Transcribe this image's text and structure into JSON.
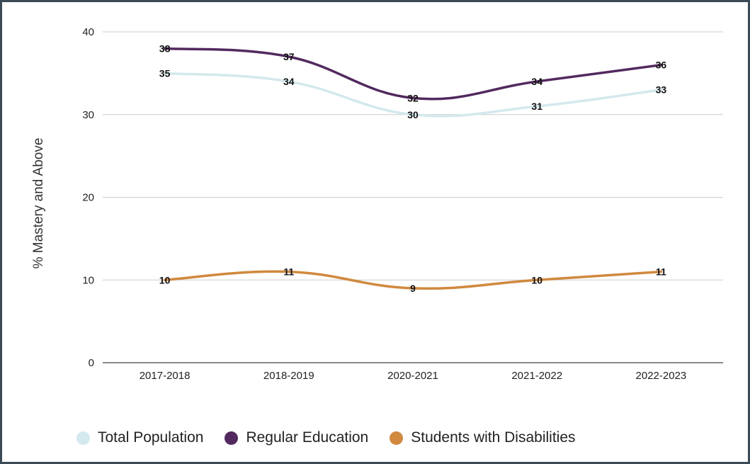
{
  "chart_data": {
    "type": "line",
    "title": "",
    "xlabel": "",
    "ylabel": "% Mastery and Above",
    "ylim": [
      0,
      40
    ],
    "yticks": [
      0,
      10,
      20,
      30,
      40
    ],
    "grid": true,
    "legend_position": "bottom",
    "categories": [
      "2017-2018",
      "2018-2019",
      "2020-2021",
      "2021-2022",
      "2022-2023"
    ],
    "series": [
      {
        "name": "Total Population",
        "color": "#d3e9ed",
        "values": [
          35,
          34,
          30,
          31,
          33
        ]
      },
      {
        "name": "Regular Education",
        "color": "#52295f",
        "values": [
          38,
          37,
          32,
          34,
          36
        ]
      },
      {
        "name": "Students with Disabilities",
        "color": "#d0893f",
        "values": [
          10,
          11,
          9,
          10,
          11
        ]
      }
    ]
  }
}
